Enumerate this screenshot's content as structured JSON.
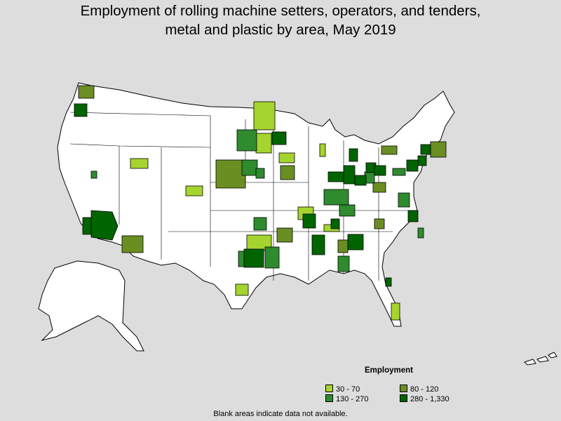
{
  "title": {
    "line1": "Employment of rolling machine setters, operators, and tenders,",
    "line2": "metal and plastic by area, May 2019"
  },
  "legend": {
    "title": "Employment",
    "items": [
      {
        "label": "30 - 70",
        "color": "#a6d42f"
      },
      {
        "label": "80 - 120",
        "color": "#6b8e23"
      },
      {
        "label": "130 - 270",
        "color": "#2e8b2e"
      },
      {
        "label": "280 - 1,330",
        "color": "#006400"
      }
    ]
  },
  "footnote": "Blank areas indicate data not available.",
  "colors": {
    "background": "#dddddd",
    "no_data": "#ffffff",
    "boundary": "#000000"
  }
}
